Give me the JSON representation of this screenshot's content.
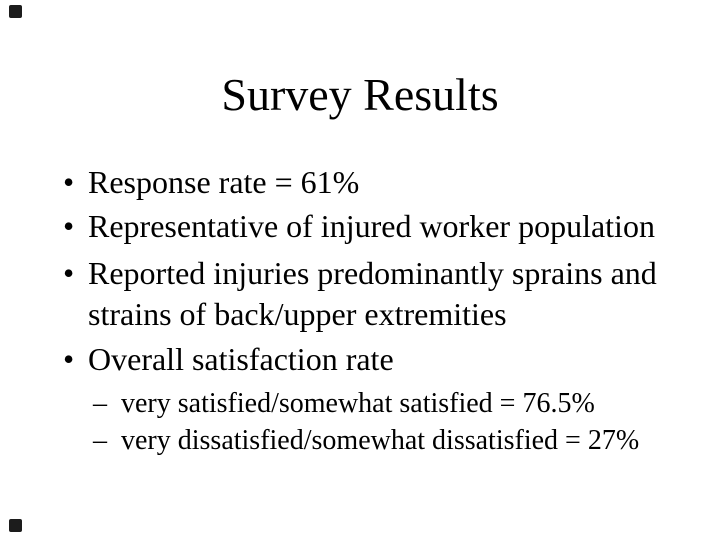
{
  "slide": {
    "title": "Survey Results",
    "bullets": [
      {
        "marker": "•",
        "lines": [
          "Response rate = 61%"
        ]
      },
      {
        "marker": "•",
        "lines": [
          "Representative of injured worker population"
        ]
      },
      {
        "marker": "•",
        "lines": [
          "Reported injuries predominantly sprains and",
          "strains of back/upper extremities"
        ]
      },
      {
        "marker": "•",
        "lines": [
          "Overall satisfaction rate"
        ]
      }
    ],
    "sub_bullets": [
      {
        "marker": "–",
        "lines": [
          "very satisfied/somewhat satisfied = 76.5%"
        ]
      },
      {
        "marker": "–",
        "lines": [
          "very dissatisfied/somewhat dissatisfied = 27%"
        ]
      }
    ],
    "colors": {
      "background": "#ffffff",
      "text": "#000000",
      "corner_mark": "#1c1c1c"
    }
  }
}
